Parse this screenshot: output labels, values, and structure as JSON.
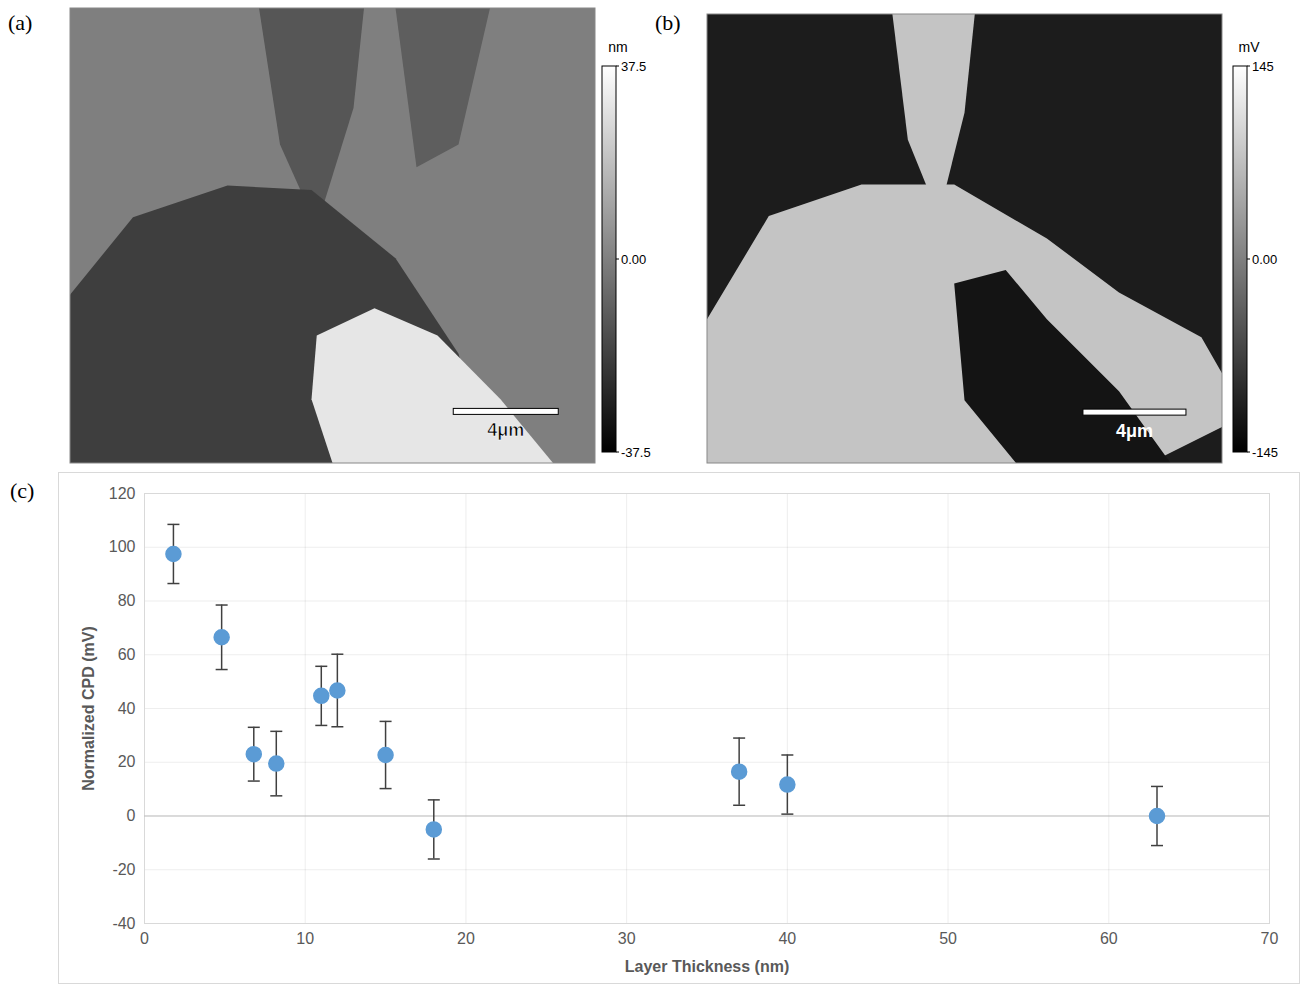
{
  "chart_data": [
    {
      "type": "image",
      "panel": "(a)",
      "scale_bar": "4μm",
      "colorbar": {
        "label": "nm",
        "range": [
          -37.5,
          37.5
        ],
        "ticks": [
          -37.5,
          {
            "value": 0,
            "label": "0.00"
          },
          37.5
        ]
      }
    },
    {
      "type": "image",
      "panel": "(b)",
      "scale_bar": "4μm",
      "colorbar": {
        "label": "mV",
        "range": [
          -145,
          145
        ],
        "ticks": [
          -145,
          {
            "value": 0,
            "label": "0.00"
          },
          145
        ]
      }
    },
    {
      "type": "scatter",
      "panel": "(c)",
      "x_label": "Layer Thickness (nm)",
      "y_label": "Normalized CPD (mV)",
      "x": [
        1.8,
        4.8,
        6.8,
        8.2,
        11,
        12,
        15,
        18,
        37,
        40,
        63
      ],
      "values": [
        97.5,
        66.5,
        23,
        19.5,
        44.7,
        46.7,
        22.7,
        -5,
        16.5,
        11.7,
        0
      ],
      "errors": [
        11,
        12,
        10,
        12,
        11,
        13.5,
        12.5,
        11,
        12.5,
        11,
        11
      ],
      "color": "#5b9bd5",
      "xlim": [
        0,
        70
      ],
      "xticks": [
        0,
        10,
        20,
        30,
        40,
        50,
        60,
        70
      ],
      "ylim": [
        -40,
        120
      ],
      "yticks": [
        -40,
        -20,
        0,
        20,
        40,
        60,
        80,
        100,
        120
      ],
      "grid": true
    }
  ]
}
